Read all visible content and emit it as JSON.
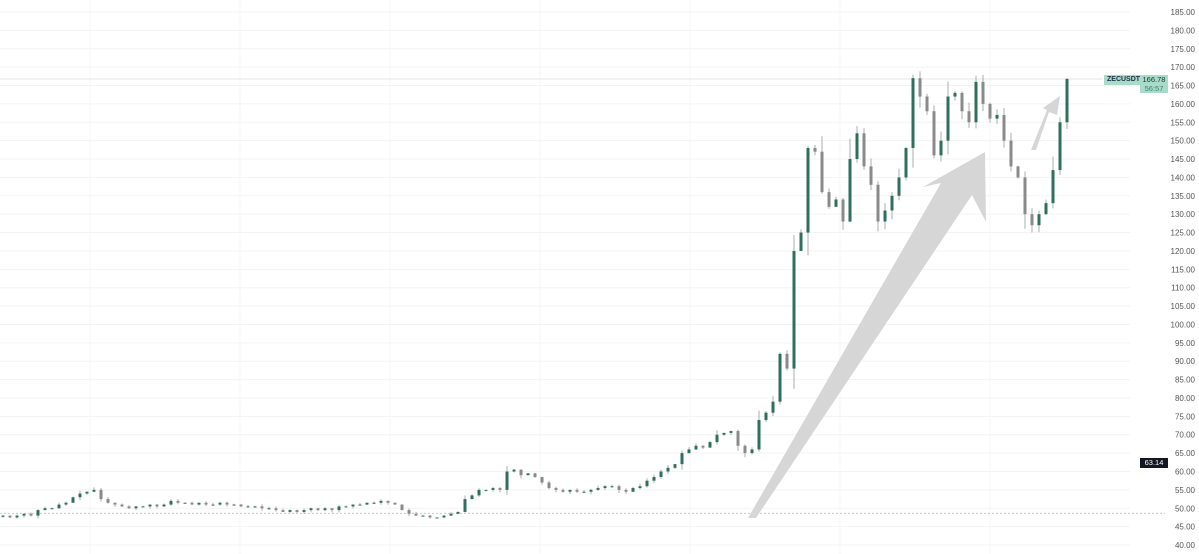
{
  "chart_data": {
    "type": "candlestick",
    "symbol": "ZECUSDT",
    "ylim": [
      40,
      185
    ],
    "y_ticks": [
      185,
      180,
      175,
      170,
      165,
      160,
      155,
      150,
      145,
      140,
      135,
      130,
      125,
      120,
      115,
      110,
      105,
      100,
      95,
      90,
      85,
      80,
      75,
      70,
      65,
      60,
      55,
      50,
      45,
      40
    ],
    "grid": true,
    "closes": [
      48,
      47.5,
      48,
      48.5,
      48,
      49.5,
      50,
      50,
      51,
      51.5,
      53,
      54,
      54.5,
      55,
      52.5,
      51.5,
      51,
      50.5,
      50,
      50.5,
      50.5,
      51,
      50.5,
      51,
      52,
      51.5,
      51.5,
      51,
      51.5,
      51,
      51,
      51.5,
      51,
      51,
      50.5,
      50.5,
      50.5,
      50,
      50,
      49.5,
      49,
      49.5,
      49,
      49.5,
      50,
      49.5,
      50,
      49.5,
      50.5,
      50.5,
      51,
      51,
      51.5,
      51.5,
      52,
      51.5,
      51,
      49.5,
      48.5,
      48,
      48,
      47.5,
      47.5,
      48,
      48.5,
      49,
      52.5,
      53.5,
      55,
      55,
      55.5,
      55,
      60,
      60.5,
      59,
      59.5,
      58.5,
      57,
      55.5,
      55,
      54.5,
      55,
      54.5,
      54.5,
      55,
      55.5,
      56,
      56,
      55,
      54.5,
      55.5,
      56,
      57.5,
      58.5,
      60,
      61,
      62,
      65,
      66,
      67,
      66.5,
      68,
      70,
      70.5,
      71,
      67,
      65,
      66,
      74,
      76,
      79,
      92,
      88,
      120,
      125,
      148,
      147,
      136,
      132,
      134,
      128,
      145,
      152,
      143,
      138,
      128,
      131,
      135,
      140,
      148,
      167,
      162,
      158,
      146,
      150,
      162,
      163,
      158,
      155,
      166,
      160,
      156,
      157,
      150,
      143,
      140,
      130,
      127,
      130,
      133,
      142,
      155,
      166.78
    ],
    "last_price": "166.78",
    "countdown": "56:57",
    "marked_price": "63.14",
    "horizontal_level": 48.6,
    "colors": {
      "up": "#2f6f5e",
      "down": "#8a8a8a",
      "label_bg": "#a8dcc8",
      "marked_bg": "#131722",
      "arrow": "#d6d6d6"
    }
  }
}
